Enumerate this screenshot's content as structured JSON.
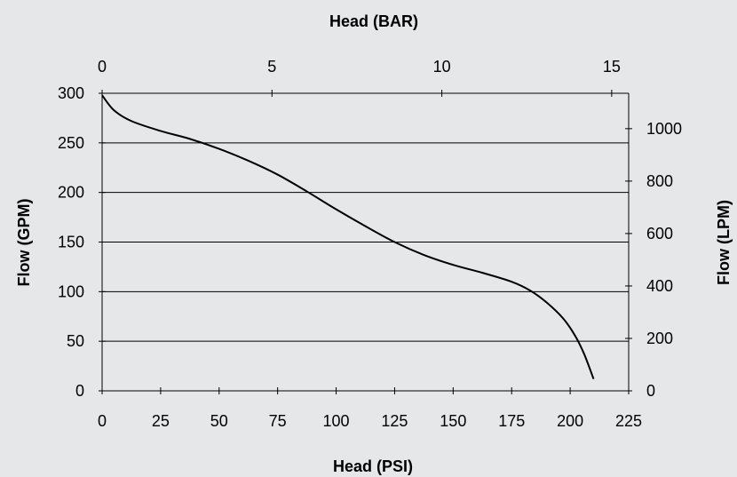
{
  "chart_data": {
    "type": "line",
    "title": "",
    "xlabel": "Head (PSI)",
    "x2label": "Head (BAR)",
    "ylabel": "Flow (GPM)",
    "y2label": "Flow (LPM)",
    "xlim": [
      0,
      225
    ],
    "ylim": [
      0,
      300
    ],
    "x2lim": [
      0,
      15.5
    ],
    "y2lim": [
      0,
      1135
    ],
    "x_ticks": [
      "0",
      "25",
      "50",
      "75",
      "100",
      "125",
      "150",
      "175",
      "200",
      "225"
    ],
    "y_ticks": [
      "0",
      "50",
      "100",
      "150",
      "200",
      "250",
      "300"
    ],
    "x2_ticks": [
      "0",
      "5",
      "10",
      "15"
    ],
    "y2_ticks": [
      "0",
      "200",
      "400",
      "600",
      "800",
      "1000"
    ],
    "grid": "horizontal",
    "legend": "none",
    "colors": {
      "background": "#e6e7e8",
      "line": "#000000",
      "grid": "#000000"
    },
    "series": [
      {
        "x": [
          0,
          5,
          12.5,
          25,
          37.5,
          50,
          62.5,
          75,
          87.5,
          100,
          112.5,
          125,
          137.5,
          150,
          162.5,
          175,
          183,
          190,
          197,
          202,
          206,
          210
        ],
        "y": [
          298,
          283,
          272,
          262,
          254,
          244,
          232,
          218,
          201,
          183,
          166,
          150,
          137,
          127,
          119,
          110,
          101,
          89,
          73,
          56,
          37,
          12
        ]
      }
    ]
  }
}
